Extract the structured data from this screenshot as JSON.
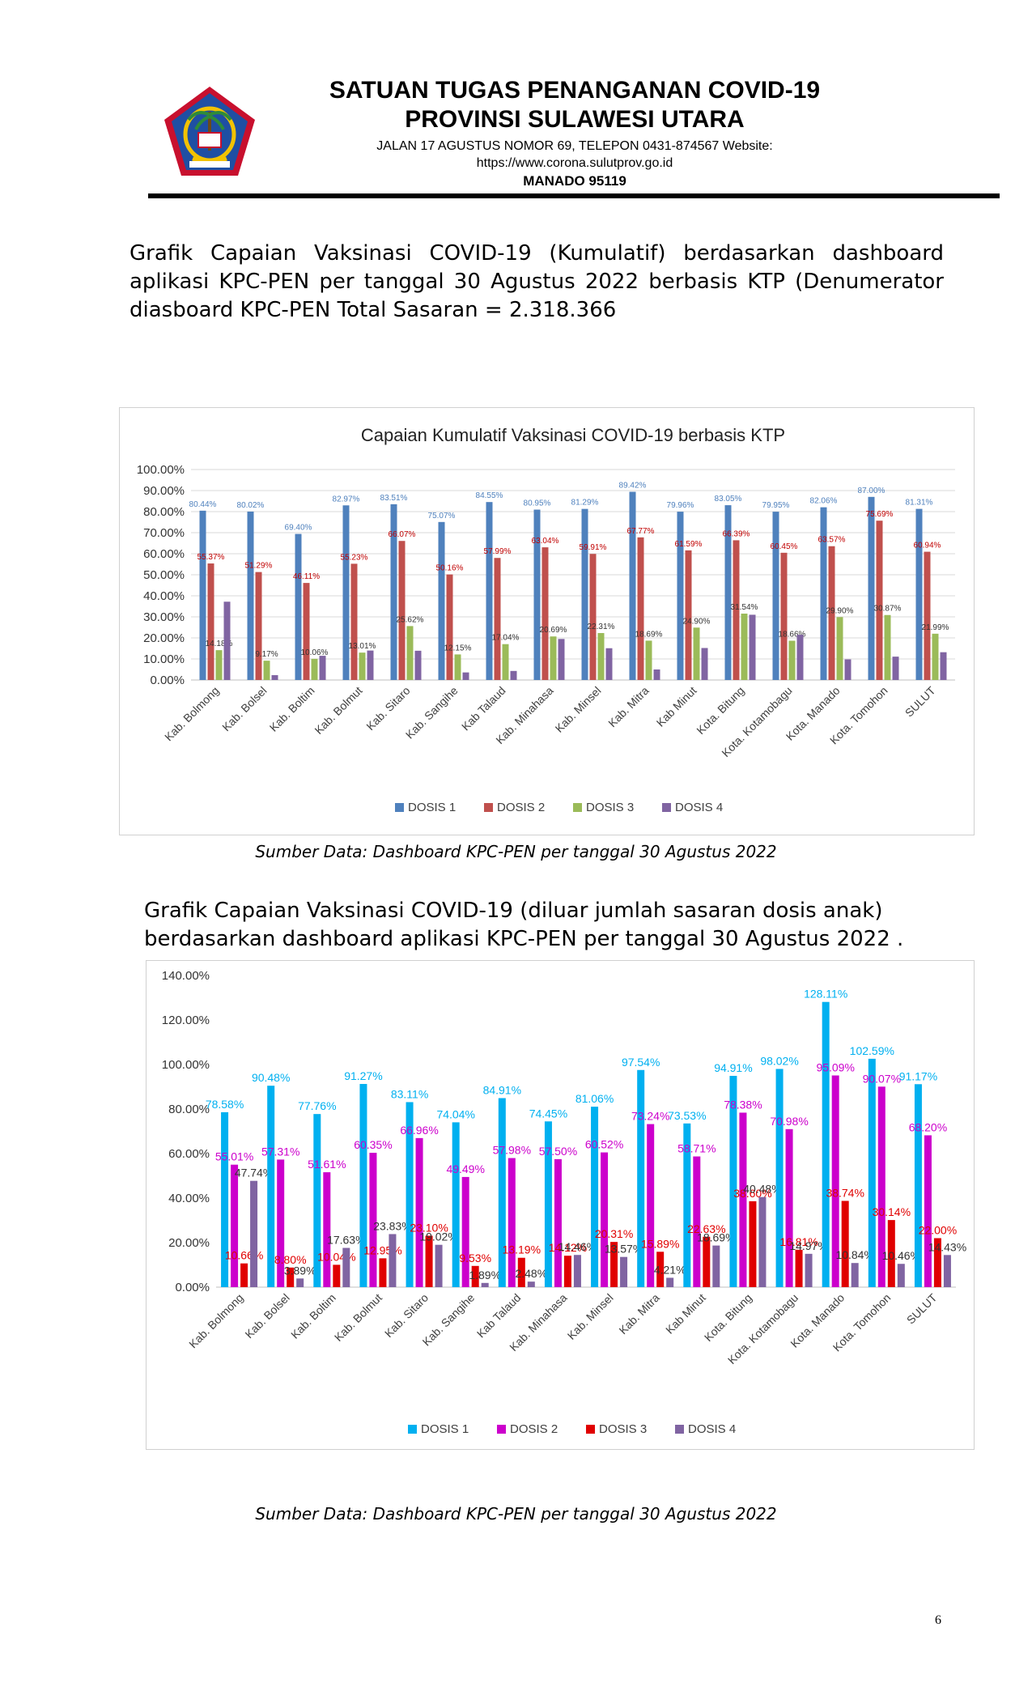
{
  "header": {
    "title_line1": "SATUAN TUGAS PENANGANAN COVID-19",
    "title_line2": "PROVINSI SULAWESI UTARA",
    "address_line1": "JALAN  17  AGUSTUS  NOMOR  69,  TELEPON  0431-874567  Website:",
    "address_line2": "https://www.corona.sulutprov.go.id",
    "city": "MANADO  95119"
  },
  "paragraphs": {
    "intro1": "Grafik Capaian Vaksinasi COVID-19 (Kumulatif) berdasarkan dashboard aplikasi KPC-PEN per tanggal 30 Agustus 2022 berbasis KTP (Denumerator diasboard KPC-PEN Total Sasaran =  2.318.366",
    "intro2_line1": "Grafik Capaian Vaksinasi COVID-19 (diluar jumlah sasaran dosis anak)",
    "intro2_line2": "berdasarkan dashboard aplikasi KPC-PEN per tanggal 30 Agustus 2022 ."
  },
  "captions": {
    "source1": "Sumber Data: Dashboard KPC-PEN per tanggal 30 Agustus 2022",
    "source2": "Sumber Data: Dashboard KPC-PEN per tanggal 30 Agustus 2022"
  },
  "page_number": "6",
  "chart_data": [
    {
      "type": "bar",
      "title": "Capaian Kumulatif Vaksinasi COVID-19 berbasis KTP",
      "xlabel": "",
      "ylabel": "",
      "ylim": [
        0,
        100
      ],
      "yticks": [
        "0.00%",
        "10.00%",
        "20.00%",
        "30.00%",
        "40.00%",
        "50.00%",
        "60.00%",
        "70.00%",
        "80.00%",
        "90.00%",
        "100.00%"
      ],
      "grid": true,
      "legend_position": "bottom",
      "categories": [
        "Kab. Bolmong",
        "Kab. Bolsel",
        "Kab. Boltim",
        "Kab. Bolmut",
        "Kab. Sitaro",
        "Kab. Sangihe",
        "Kab Talaud",
        "Kab. Minahasa",
        "Kab. Minsel",
        "Kab. Mitra",
        "Kab Minut",
        "Kota. Bitung",
        "Kota. Kotamobagu",
        "Kota. Manado",
        "Kota. Tomohon",
        "SULUT"
      ],
      "series": [
        {
          "name": "DOSIS 1",
          "color": "#4f81bd",
          "label_color": "#4f81bd",
          "values": [
            80.44,
            80.02,
            69.4,
            82.97,
            83.51,
            75.07,
            84.55,
            80.95,
            81.29,
            89.42,
            79.96,
            83.05,
            79.95,
            82.06,
            87.0,
            81.31
          ],
          "labels": [
            "80.44%",
            "80.02%",
            "69.40%",
            "82.97%",
            "83.51%",
            "75.07%",
            "84.55%",
            "80.95%",
            "81.29%",
            "89.42%",
            "79.96%",
            "83.05%",
            "79.95%",
            "82.06%",
            "87.00%",
            "81.31%"
          ]
        },
        {
          "name": "DOSIS 2",
          "color": "#c0504d",
          "label_color": "#c00000",
          "values": [
            55.37,
            51.29,
            46.11,
            55.23,
            66.07,
            50.16,
            57.99,
            63.04,
            59.91,
            67.77,
            61.59,
            66.39,
            60.45,
            63.57,
            75.69,
            60.94
          ],
          "labels": [
            "55.37%",
            "51.29%",
            "46.11%",
            "55.23%",
            "66.07%",
            "50.16%",
            "57.99%",
            "63.04%",
            "59.91%",
            "67.77%",
            "61.59%",
            "66.39%",
            "60.45%",
            "63.57%",
            "75.69%",
            "60.94%"
          ]
        },
        {
          "name": "DOSIS 3",
          "color": "#9bbb59",
          "label_color": "#333333",
          "values": [
            14.18,
            9.17,
            10.06,
            13.01,
            25.62,
            12.15,
            17.04,
            20.69,
            22.31,
            18.69,
            24.9,
            31.54,
            18.66,
            29.9,
            30.87,
            21.99
          ],
          "labels": [
            "14.18%",
            "9.17%",
            "10.06%",
            "13.01%",
            "25.62%",
            "12.15%",
            "17.04%",
            "20.69%",
            "22.31%",
            "18.69%",
            "24.90%",
            "31.54%",
            "18.66%",
            "29.90%",
            "30.87%",
            "21.99%"
          ]
        },
        {
          "name": "DOSIS 4",
          "color": "#8064a2",
          "values": [
            37.2,
            2.3,
            11.5,
            14.0,
            13.9,
            3.6,
            4.3,
            19.5,
            15.1,
            5.0,
            15.2,
            31.0,
            21.5,
            9.8,
            11.1,
            13.2
          ],
          "labels": []
        }
      ]
    },
    {
      "type": "bar",
      "title": "",
      "xlabel": "",
      "ylabel": "",
      "ylim": [
        0,
        140
      ],
      "yticks": [
        "0.00%",
        "20.00%",
        "40.00%",
        "60.00%",
        "80.00%",
        "100.00%",
        "120.00%",
        "140.00%"
      ],
      "grid": false,
      "legend_position": "bottom",
      "categories": [
        "Kab. Bolmong",
        "Kab. Bolsel",
        "Kab. Boltim",
        "Kab. Bolmut",
        "Kab. Sitaro",
        "Kab. Sangihe",
        "Kab Talaud",
        "Kab. Minahasa",
        "Kab. Minsel",
        "Kab. Mitra",
        "Kab Minut",
        "Kota. Bitung",
        "Kota. Kotamobagu",
        "Kota. Manado",
        "Kota. Tomohon",
        "SULUT"
      ],
      "series": [
        {
          "name": "DOSIS 1",
          "color": "#00b0f0",
          "label_color": "#00b0f0",
          "values": [
            78.58,
            90.48,
            77.76,
            91.27,
            83.11,
            74.04,
            84.91,
            74.45,
            81.06,
            97.54,
            73.53,
            94.91,
            98.02,
            128.11,
            102.59,
            91.17
          ],
          "labels": [
            "78.58%",
            "90.48%",
            "77.76%",
            "91.27%",
            "83.11%",
            "74.04%",
            "84.91%",
            "74.45%",
            "81.06%",
            "97.54%",
            "73.53%",
            "94.91%",
            "98.02%",
            "128.11%",
            "102.59%",
            "91.17%"
          ]
        },
        {
          "name": "DOSIS 2",
          "color": "#cc00cc",
          "label_color": "#cc00cc",
          "values": [
            55.01,
            57.31,
            51.61,
            60.35,
            66.96,
            49.49,
            57.98,
            57.5,
            60.52,
            73.24,
            58.71,
            78.38,
            70.98,
            95.09,
            90.07,
            68.2
          ],
          "labels": [
            "55.01%",
            "57.31%",
            "51.61%",
            "60.35%",
            "66.96%",
            "49.49%",
            "57.98%",
            "57.50%",
            "60.52%",
            "73.24%",
            "58.71%",
            "78.38%",
            "70.98%",
            "95.09%",
            "90.07%",
            "68.20%"
          ]
        },
        {
          "name": "DOSIS 3",
          "color": "#e00000",
          "label_color": "#e00000",
          "values": [
            10.66,
            8.8,
            10.04,
            12.95,
            23.1,
            9.53,
            13.19,
            14.12,
            20.31,
            15.89,
            22.63,
            38.6,
            16.81,
            38.74,
            30.14,
            22.0
          ],
          "labels": [
            "10.66%",
            "8.80%",
            "10.04%",
            "12.95%",
            "23.10%",
            "9.53%",
            "13.19%",
            "14.12%",
            "20.31%",
            "15.89%",
            "22.63%",
            "38.60%",
            "16.81%",
            "38.74%",
            "30.14%",
            "22.00%"
          ]
        },
        {
          "name": "DOSIS 4",
          "color": "#8064a2",
          "label_color": "#333333",
          "values": [
            47.74,
            3.89,
            17.63,
            23.83,
            19.02,
            1.89,
            2.48,
            14.46,
            13.57,
            4.21,
            18.69,
            40.48,
            14.97,
            10.84,
            10.46,
            14.43
          ],
          "labels": [
            "47.74%",
            "3.89%",
            "17.63%",
            "23.83%",
            "19.02%",
            "1.89%",
            "2.48%",
            "14.46%",
            "13.57%",
            "4.21%",
            "18.69%",
            "40.48%",
            "14.97%",
            "10.84%",
            "10.46%",
            "14.43%"
          ]
        }
      ]
    }
  ]
}
